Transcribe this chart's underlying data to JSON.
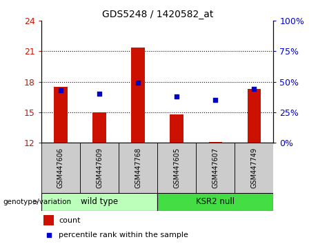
{
  "title": "GDS5248 / 1420582_at",
  "samples": [
    "GSM447606",
    "GSM447609",
    "GSM447768",
    "GSM447605",
    "GSM447607",
    "GSM447749"
  ],
  "bar_values": [
    17.5,
    15.0,
    21.35,
    14.8,
    12.1,
    17.3
  ],
  "bar_bottom": 12,
  "percentile_values": [
    43,
    40,
    49,
    38,
    35,
    44
  ],
  "ylim_left": [
    12,
    24
  ],
  "ylim_right": [
    0,
    100
  ],
  "yticks_left": [
    12,
    15,
    18,
    21,
    24
  ],
  "yticks_right": [
    0,
    25,
    50,
    75,
    100
  ],
  "bar_color": "#cc1100",
  "dot_color": "#0000cc",
  "wild_type_label": "wild type",
  "ksr2_null_label": "KSR2 null",
  "wild_type_color": "#bbffbb",
  "ksr2_null_color": "#44dd44",
  "genotype_label": "genotype/variation",
  "legend_count": "count",
  "legend_percentile": "percentile rank within the sample",
  "left_tick_color": "#cc1100",
  "right_tick_color": "#0000cc",
  "background_label": "#cccccc",
  "bar_width": 0.35
}
